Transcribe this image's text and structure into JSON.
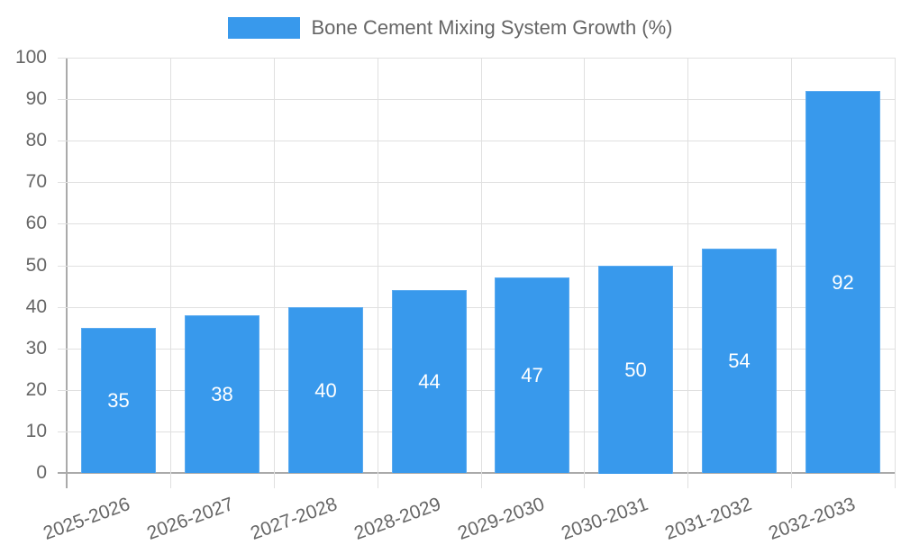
{
  "legend": {
    "label": "Bone Cement Mixing System Growth (%)",
    "color": "#3899ec"
  },
  "y_axis": {
    "ticks": [
      "0",
      "10",
      "20",
      "30",
      "40",
      "50",
      "60",
      "70",
      "80",
      "90",
      "100"
    ]
  },
  "x_axis": {
    "ticks": [
      "2025-2026",
      "2026-2027",
      "2027-2028",
      "2028-2029",
      "2029-2030",
      "2030-2031",
      "2031-2032",
      "2032-2033"
    ]
  },
  "bars": [
    {
      "category": "2025-2026",
      "value": 35,
      "label": "35"
    },
    {
      "category": "2026-2027",
      "value": 38,
      "label": "38"
    },
    {
      "category": "2027-2028",
      "value": 40,
      "label": "40"
    },
    {
      "category": "2028-2029",
      "value": 44,
      "label": "44"
    },
    {
      "category": "2029-2030",
      "value": 47,
      "label": "47"
    },
    {
      "category": "2030-2031",
      "value": 50,
      "label": "50"
    },
    {
      "category": "2031-2032",
      "value": 54,
      "label": "54"
    },
    {
      "category": "2032-2033",
      "value": 92,
      "label": "92"
    }
  ],
  "chart_data": {
    "type": "bar",
    "title": "",
    "categories": [
      "2025-2026",
      "2026-2027",
      "2027-2028",
      "2028-2029",
      "2029-2030",
      "2030-2031",
      "2031-2032",
      "2032-2033"
    ],
    "series": [
      {
        "name": "Bone Cement Mixing System Growth (%)",
        "values": [
          35,
          38,
          40,
          44,
          47,
          50,
          54,
          92
        ],
        "color": "#3899ec"
      }
    ],
    "xlabel": "",
    "ylabel": "",
    "ylim": [
      0,
      100
    ],
    "yticks": [
      0,
      10,
      20,
      30,
      40,
      50,
      60,
      70,
      80,
      90,
      100
    ],
    "grid": true,
    "legend_position": "top",
    "data_labels": true
  }
}
